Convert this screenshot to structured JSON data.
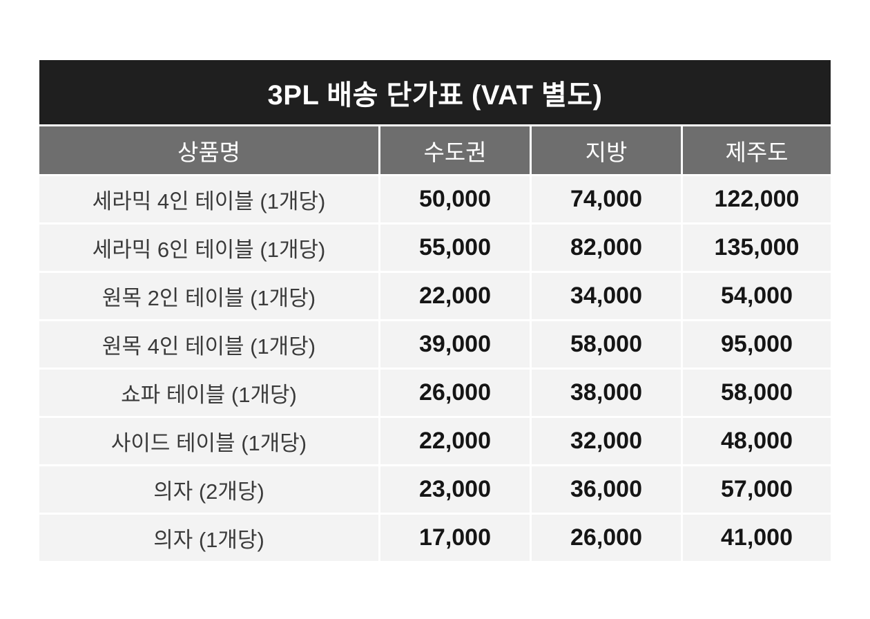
{
  "colors": {
    "title_bg": "#1f1f1f",
    "header_bg": "#6e6e6e",
    "row_bg": "#f3f3f3",
    "page_bg": "#ffffff",
    "header_text": "#ffffff",
    "body_text": "#3a3a3a",
    "number_text": "#151515"
  },
  "table": {
    "title": "3PL 배송 단가표 (VAT 별도)",
    "columns": [
      "상품명",
      "수도권",
      "지방",
      "제주도"
    ],
    "rows": [
      {
        "product": "세라믹 4인 테이블 (1개당)",
        "metro": "50,000",
        "regional": "74,000",
        "jeju": "122,000"
      },
      {
        "product": "세라믹 6인 테이블 (1개당)",
        "metro": "55,000",
        "regional": "82,000",
        "jeju": "135,000"
      },
      {
        "product": "원목 2인 테이블 (1개당)",
        "metro": "22,000",
        "regional": "34,000",
        "jeju": "54,000"
      },
      {
        "product": "원목 4인 테이블 (1개당)",
        "metro": "39,000",
        "regional": "58,000",
        "jeju": "95,000"
      },
      {
        "product": "쇼파 테이블 (1개당)",
        "metro": "26,000",
        "regional": "38,000",
        "jeju": "58,000"
      },
      {
        "product": "사이드 테이블 (1개당)",
        "metro": "22,000",
        "regional": "32,000",
        "jeju": "48,000"
      },
      {
        "product": "의자 (2개당)",
        "metro": "23,000",
        "regional": "36,000",
        "jeju": "57,000"
      },
      {
        "product": "의자 (1개당)",
        "metro": "17,000",
        "regional": "26,000",
        "jeju": "41,000"
      }
    ]
  },
  "chart_data": {
    "type": "table",
    "title": "3PL 배송 단가표 (VAT 별도)",
    "columns": [
      "상품명",
      "수도권",
      "지방",
      "제주도"
    ],
    "unit": "KRW, VAT excluded",
    "rows": [
      [
        "세라믹 4인 테이블 (1개당)",
        50000,
        74000,
        122000
      ],
      [
        "세라믹 6인 테이블 (1개당)",
        55000,
        82000,
        135000
      ],
      [
        "원목 2인 테이블 (1개당)",
        22000,
        34000,
        54000
      ],
      [
        "원목 4인 테이블 (1개당)",
        39000,
        58000,
        95000
      ],
      [
        "쇼파 테이블 (1개당)",
        26000,
        38000,
        58000
      ],
      [
        "사이드 테이블 (1개당)",
        22000,
        32000,
        48000
      ],
      [
        "의자 (2개당)",
        23000,
        36000,
        57000
      ],
      [
        "의자 (1개당)",
        17000,
        26000,
        41000
      ]
    ]
  }
}
